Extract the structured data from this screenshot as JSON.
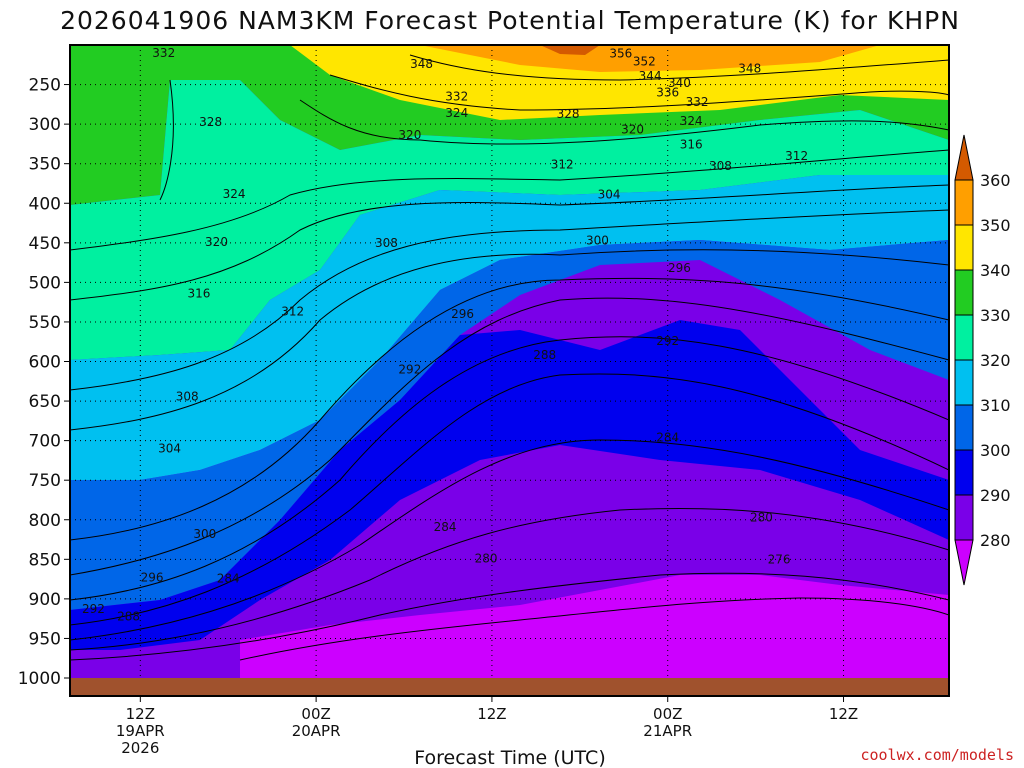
{
  "chart_data": {
    "type": "contour",
    "title": "2026041906 NAM3KM Forecast Potential Temperature (K) for KHPN",
    "xlabel": "Forecast Time (UTC)",
    "ylabel": "",
    "credit": "coolwx.com/models",
    "y_ticks": [
      "250",
      "300",
      "350",
      "400",
      "450",
      "500",
      "550",
      "600",
      "650",
      "700",
      "750",
      "800",
      "850",
      "900",
      "950",
      "1000"
    ],
    "y_values": [
      250,
      300,
      350,
      400,
      450,
      500,
      550,
      600,
      650,
      700,
      750,
      800,
      850,
      900,
      950,
      1000
    ],
    "y_range_hpa": [
      200,
      1000
    ],
    "x_range_hours": [
      6,
      81
    ],
    "x_ticks": [
      {
        "hour": 12,
        "label": "12Z",
        "date": "19APR",
        "year": "2026"
      },
      {
        "hour": 27,
        "label": "00Z",
        "date": "20APR",
        "year": ""
      },
      {
        "hour": 42,
        "label": "12Z",
        "date": "",
        "year": ""
      },
      {
        "hour": 57,
        "label": "00Z",
        "date": "21APR",
        "year": ""
      },
      {
        "hour": 72,
        "label": "12Z",
        "date": "",
        "year": ""
      }
    ],
    "colorbar": {
      "labels": [
        "360",
        "350",
        "340",
        "330",
        "320",
        "310",
        "300",
        "290",
        "280"
      ],
      "values": [
        360,
        350,
        340,
        330,
        320,
        310,
        300,
        290,
        280
      ],
      "colors": [
        "#d45a00",
        "#ff9f00",
        "#ffe600",
        "#22cc22",
        "#00f0a0",
        "#00c0f0",
        "#0066e8",
        "#0000ee",
        "#7a00e8",
        "#cc00ff"
      ]
    },
    "contour_labels": [
      {
        "text": "332",
        "hour": 14.0,
        "hpa": 210
      },
      {
        "text": "356",
        "hour": 53.0,
        "hpa": 211
      },
      {
        "text": "352",
        "hour": 55.0,
        "hpa": 221
      },
      {
        "text": "348",
        "hour": 36.0,
        "hpa": 224
      },
      {
        "text": "348",
        "hour": 64.0,
        "hpa": 230
      },
      {
        "text": "344",
        "hour": 55.5,
        "hpa": 239
      },
      {
        "text": "340",
        "hour": 58.0,
        "hpa": 248
      },
      {
        "text": "336",
        "hour": 57.0,
        "hpa": 260
      },
      {
        "text": "332",
        "hour": 39.0,
        "hpa": 265
      },
      {
        "text": "332",
        "hour": 59.5,
        "hpa": 272
      },
      {
        "text": "328",
        "hour": 48.5,
        "hpa": 287
      },
      {
        "text": "324",
        "hour": 39.0,
        "hpa": 286
      },
      {
        "text": "324",
        "hour": 59.0,
        "hpa": 296
      },
      {
        "text": "328",
        "hour": 18.0,
        "hpa": 297
      },
      {
        "text": "320",
        "hour": 35.0,
        "hpa": 314
      },
      {
        "text": "320",
        "hour": 54.0,
        "hpa": 307
      },
      {
        "text": "316",
        "hour": 59.0,
        "hpa": 326
      },
      {
        "text": "312",
        "hour": 48.0,
        "hpa": 351
      },
      {
        "text": "312",
        "hour": 68.0,
        "hpa": 340
      },
      {
        "text": "308",
        "hour": 61.5,
        "hpa": 353
      },
      {
        "text": "324",
        "hour": 20.0,
        "hpa": 388
      },
      {
        "text": "304",
        "hour": 52.0,
        "hpa": 389
      },
      {
        "text": "308",
        "hour": 33.0,
        "hpa": 450
      },
      {
        "text": "320",
        "hour": 18.5,
        "hpa": 449
      },
      {
        "text": "300",
        "hour": 51.0,
        "hpa": 447
      },
      {
        "text": "296",
        "hour": 58.0,
        "hpa": 482
      },
      {
        "text": "316",
        "hour": 17.0,
        "hpa": 514
      },
      {
        "text": "312",
        "hour": 25.0,
        "hpa": 537
      },
      {
        "text": "296",
        "hour": 39.5,
        "hpa": 540
      },
      {
        "text": "292",
        "hour": 57.0,
        "hpa": 574
      },
      {
        "text": "288",
        "hour": 46.5,
        "hpa": 592
      },
      {
        "text": "292",
        "hour": 35.0,
        "hpa": 610
      },
      {
        "text": "308",
        "hour": 16.0,
        "hpa": 644
      },
      {
        "text": "284",
        "hour": 57.0,
        "hpa": 696
      },
      {
        "text": "304",
        "hour": 14.5,
        "hpa": 710
      },
      {
        "text": "280",
        "hour": 65.0,
        "hpa": 797
      },
      {
        "text": "284",
        "hour": 38.0,
        "hpa": 809
      },
      {
        "text": "300",
        "hour": 17.5,
        "hpa": 818
      },
      {
        "text": "276",
        "hour": 66.5,
        "hpa": 850
      },
      {
        "text": "280",
        "hour": 41.5,
        "hpa": 849
      },
      {
        "text": "296",
        "hour": 13.0,
        "hpa": 873
      },
      {
        "text": "284",
        "hour": 19.5,
        "hpa": 874
      },
      {
        "text": "292",
        "hour": 8.0,
        "hpa": 913
      },
      {
        "text": "288",
        "hour": 11.0,
        "hpa": 922
      }
    ]
  }
}
